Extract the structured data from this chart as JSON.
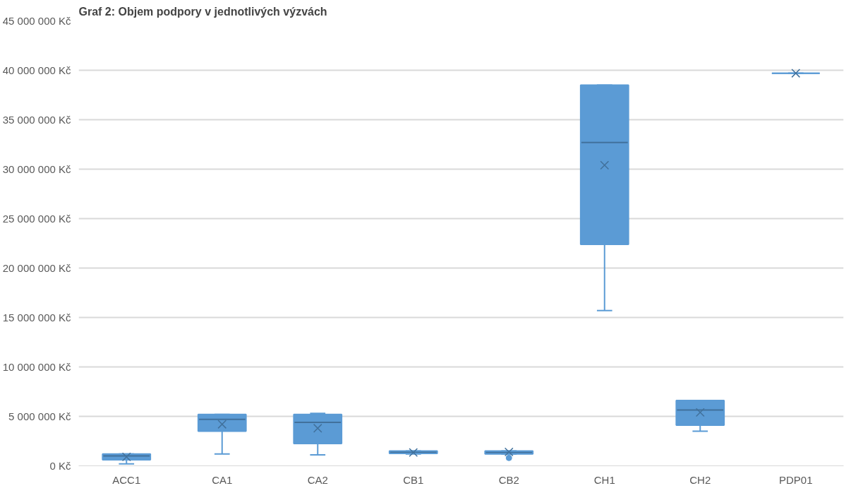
{
  "chart_data": {
    "type": "box",
    "title": "Graf 2: Objem podpory v jednotlivých výzvách",
    "categories": [
      "ACC1",
      "CA1",
      "CA2",
      "CB1",
      "CB2",
      "CH1",
      "CH2",
      "PDP01"
    ],
    "color": "#5b9bd5",
    "boxes": [
      {
        "low": 200000,
        "q1": 600000,
        "median": 1000000,
        "q3": 1200000,
        "high": 1200000,
        "mean": 900000
      },
      {
        "low": 1200000,
        "q1": 3500000,
        "median": 4700000,
        "q3": 5200000,
        "high": 5200000,
        "mean": 4200000
      },
      {
        "low": 1100000,
        "q1": 2250000,
        "median": 4400000,
        "q3": 5200000,
        "high": 5300000,
        "mean": 3800000
      },
      {
        "low": 1200000,
        "q1": 1250000,
        "median": 1400000,
        "q3": 1500000,
        "high": 1500000,
        "mean": 1350000
      },
      {
        "low": 1200000,
        "q1": 1200000,
        "median": 1350000,
        "q3": 1500000,
        "high": 1500000,
        "mean": 1400000,
        "outliers": [
          800000
        ]
      },
      {
        "low": 15700000,
        "q1": 22400000,
        "median": 32700000,
        "q3": 38500000,
        "high": 38500000,
        "mean": 30400000
      },
      {
        "low": 3500000,
        "q1": 4100000,
        "median": 5650000,
        "q3": 6600000,
        "high": 6600000,
        "mean": 5400000
      },
      {
        "low": 39700000,
        "q1": 39700000,
        "median": 39700000,
        "q3": 39700000,
        "high": 39700000,
        "mean": 39700000
      }
    ],
    "ylim": [
      0,
      45000000
    ],
    "yticks": [
      {
        "value": 0,
        "label": "0 Kč"
      },
      {
        "value": 5000000,
        "label": "5 000 000 Kč"
      },
      {
        "value": 10000000,
        "label": "10 000 000 Kč"
      },
      {
        "value": 15000000,
        "label": "15 000 000 Kč"
      },
      {
        "value": 20000000,
        "label": "20 000 000 Kč"
      },
      {
        "value": 25000000,
        "label": "25 000 000 Kč"
      },
      {
        "value": 30000000,
        "label": "30 000 000 Kč"
      },
      {
        "value": 35000000,
        "label": "35 000 000 Kč"
      },
      {
        "value": 40000000,
        "label": "40 000 000 Kč"
      },
      {
        "value": 45000000,
        "label": "45 000 000 Kč"
      }
    ],
    "grid": "y"
  }
}
